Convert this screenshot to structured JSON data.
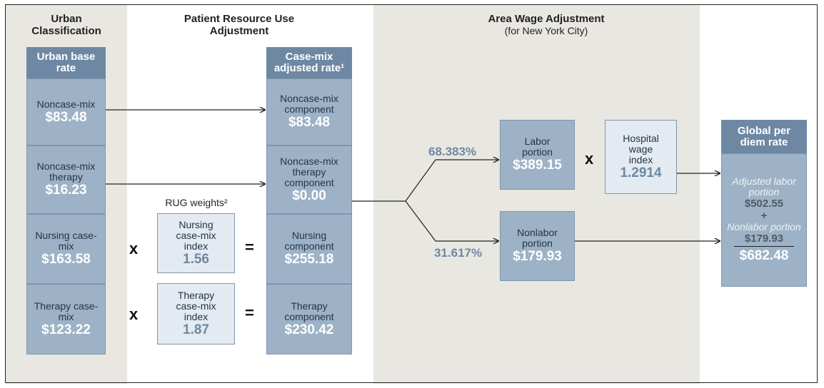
{
  "headers": {
    "urban": "Urban Classification",
    "patient": "Patient Resource Use Adjustment",
    "wage": "Area Wage Adjustment",
    "wage_note": "(for New York City)"
  },
  "urban_base": {
    "title": "Urban base rate",
    "rows": [
      {
        "label": "Noncase-mix",
        "value": "$83.48"
      },
      {
        "label": "Noncase-mix therapy",
        "value": "$16.23"
      },
      {
        "label": "Nursing case-mix",
        "value": "$163.58"
      },
      {
        "label": "Therapy case-mix",
        "value": "$123.22"
      }
    ]
  },
  "rug_weights": {
    "title": "RUG weights²",
    "rows": [
      {
        "label": "Nursing case-mix index",
        "value": "1.56"
      },
      {
        "label": "Therapy case-mix index",
        "value": "1.87"
      }
    ]
  },
  "operators": {
    "multiply": "x",
    "equals": "="
  },
  "case_mix": {
    "title": "Case-mix adjusted rate¹",
    "rows": [
      {
        "label": "Noncase-mix component",
        "value": "$83.48"
      },
      {
        "label": "Noncase-mix therapy component",
        "value": "$0.00"
      },
      {
        "label": "Nursing component",
        "value": "$255.18"
      },
      {
        "label": "Therapy component",
        "value": "$230.42"
      }
    ]
  },
  "wage": {
    "labor_share": "68.383%",
    "nonlabor_share": "31.617%",
    "labor": {
      "label": "Labor portion",
      "value": "$389.15"
    },
    "nonlabor": {
      "label": "Nonlabor portion",
      "value": "$179.93"
    },
    "hospital_wage_index": {
      "label": "Hospital wage index",
      "value": "1.2914"
    }
  },
  "global": {
    "title": "Global per diem rate",
    "labor_label": "Adjusted labor portion",
    "labor_value": "$502.55",
    "plus": "+",
    "nonlabor_label": "Nonlabor portion",
    "nonlabor_value": "$179.93",
    "total": "$682.48"
  }
}
